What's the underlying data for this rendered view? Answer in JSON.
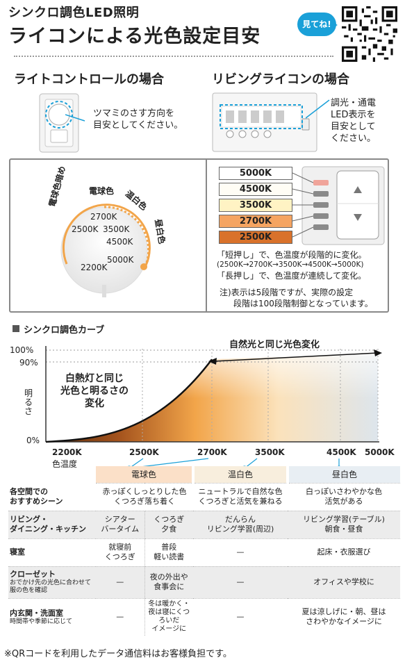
{
  "header": {
    "subtitle": "シンクロ調色LED照明",
    "title": "ライコンによる光色設定目安",
    "bubble": "見てね!"
  },
  "light_control": {
    "heading": "ライトコントロールの場合",
    "note_line1": "ツマミのさす方向を",
    "note_line2": "目安としてください。",
    "dial_labels": {
      "denkyu_kurai": "電球色暗め",
      "denkyu": "電球色",
      "onpaku": "温白色",
      "chuhaku": "昼白色"
    },
    "dial_k": [
      "2700K",
      "2500K",
      "3500K",
      "4500K",
      "5000K",
      "2200K"
    ]
  },
  "living": {
    "heading": "リビングライコンの場合",
    "note_line1": "調光・通電",
    "note_line2": "LED表示を",
    "note_line3": "目安として",
    "note_line4": "ください。",
    "levels": [
      {
        "label": "5000K",
        "color": "#ffffff",
        "led": "#f0a49a"
      },
      {
        "label": "4500K",
        "color": "#fffdf5",
        "led": "#8a8a8a"
      },
      {
        "label": "3500K",
        "color": "#fff3c4",
        "led": "#8a8a8a"
      },
      {
        "label": "2700K",
        "color": "#f5a461",
        "led": "#8a8a8a"
      },
      {
        "label": "2500K",
        "color": "#d9722b",
        "led": "#8a8a8a"
      }
    ],
    "desc1": "「短押し」で、色温度が段階的に変化。",
    "desc2": "(2500K→2700K→3500K→4500K→5000K)",
    "desc3": "「長押し」で、色温度が連続して変化。",
    "note1": "注)表示は5段階ですが、実際の設定",
    "note2": "段階は100段階制御となっています。"
  },
  "curve": {
    "heading": "シンクロ調色カーブ",
    "y_100": "100%",
    "y_90": "90%",
    "y_0": "0%",
    "ylabel": "明るさ",
    "xlabel": "色温度",
    "x_ticks": [
      "2200K",
      "2500K",
      "2700K",
      "3500K",
      "4500K",
      "5000K"
    ],
    "annot_left_1": "白熱灯と同じ",
    "annot_left_2": "光色と明るさの",
    "annot_left_3": "変化",
    "annot_right": "自然光と同じ光色変化"
  },
  "chart_data": {
    "type": "area",
    "x": [
      "2200K",
      "2500K",
      "2700K",
      "3500K",
      "4500K",
      "5000K"
    ],
    "y_brightness_percent": [
      0,
      40,
      90,
      92,
      94,
      95
    ],
    "xlabel": "色温度",
    "ylabel": "明るさ",
    "ylim": [
      0,
      100
    ],
    "y_ticks": [
      "0%",
      "90%",
      "100%"
    ]
  },
  "table": {
    "groups": [
      "電球色",
      "温白色",
      "昼白色"
    ],
    "rows": [
      {
        "head": "各空間での",
        "head2": "おすすめシーン",
        "cells": [
          "赤っぽくしっとりした色",
          "くつろぎ落ち着く",
          "ニュートラルで自然な色",
          "くつろぎと活気を兼ねる",
          "白っぽいさわやかな色",
          "活気がある"
        ]
      },
      {
        "head": "リビング・",
        "head2": "ダイニング・キッチン",
        "cells": [
          "シアター",
          "バータイム",
          "くつろぎ",
          "夕食",
          "だんらん",
          "リビング学習(周辺)",
          "リビング学習(テーブル)",
          "朝食・昼食"
        ]
      },
      {
        "head": "寝室",
        "cells": [
          "就寝前",
          "くつろぎ",
          "普段",
          "軽い読書",
          "—",
          "起床・衣服選び"
        ]
      },
      {
        "head": "クローゼット",
        "sub": "おでかけ先の光色に合わせて服の色を確認",
        "cells": [
          "—",
          "夜の外出や",
          "食事会に",
          "—",
          "オフィスや学校に"
        ]
      },
      {
        "head": "内玄関・洗面室",
        "sub": "時間帯や季節に応じて",
        "cells": [
          "—",
          "冬は暖かく・",
          "夜は寝にくつろいだ",
          "イメージに",
          "—",
          "夏は涼しげに・朝、昼は",
          "さわやかなイメージに"
        ]
      }
    ]
  },
  "footnote": "※QRコードを利用したデータ通信料はお客様負担です。"
}
